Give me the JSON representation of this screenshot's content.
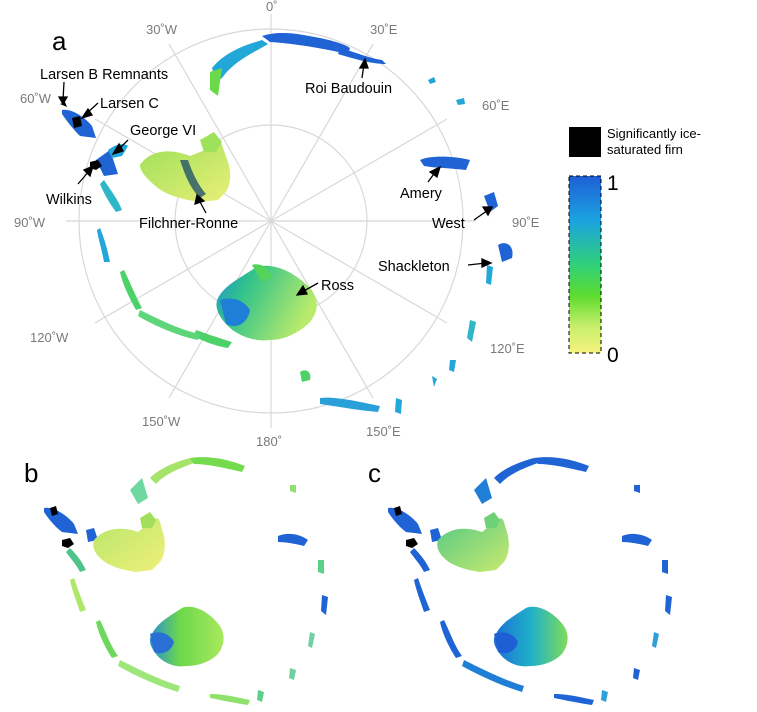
{
  "panels": {
    "a": "a",
    "b": "b",
    "c": "c"
  },
  "longitudes": [
    "0˚",
    "30˚E",
    "60˚E",
    "90˚E",
    "120˚E",
    "150˚E",
    "180˚",
    "150˚W",
    "120˚W",
    "90˚W",
    "60˚W",
    "30˚W"
  ],
  "ice_shelves": {
    "larsen_b": "Larsen B Remnants",
    "larsen_c": "Larsen C",
    "george_vi": "George VI",
    "wilkins": "Wilkins",
    "filchner_ronne": "Filchner-Ronne",
    "ross": "Ross",
    "roi_baudouin": "Roi Baudouin",
    "amery": "Amery",
    "west": "West",
    "shackleton": "Shackleton"
  },
  "legend": {
    "saturated_label_line1": "Significantly ice-",
    "saturated_label_line2": "saturated firn",
    "colorbar_max": "1",
    "colorbar_min": "0"
  },
  "colors": {
    "grid": "#d8d8d8",
    "blue": "#1f5fd6",
    "cyan": "#1aa3e0",
    "green": "#4cd43a",
    "yellow": "#f2f078",
    "saturated": "#000000"
  }
}
